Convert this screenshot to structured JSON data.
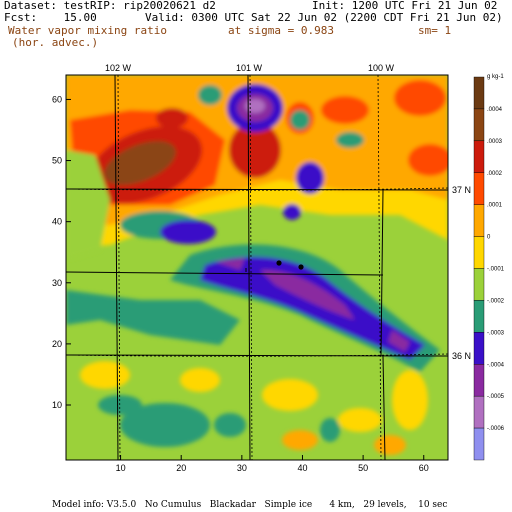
{
  "header": {
    "dataset": "Dataset: test",
    "rip": "RIP: rip20020621 d2",
    "init": "Init: 1200 UTC Fri 21 Jun 02",
    "fcst": "Fcst:    15.00",
    "valid": "Valid: 0300 UTC Sat 22 Jun 02 (2200 CDT Fri 21 Jun 02)",
    "field_line1": "Water vapor mixing ratio",
    "field_line2": "(hor. advec.)",
    "sigma": "at sigma = 0.983",
    "sm": "sm= 1"
  },
  "map": {
    "lon_labels": [
      "102 W",
      "101 W",
      "100 W"
    ],
    "lat_labels": [
      "37 N",
      "36 N"
    ],
    "x_ticks": [
      "10",
      "20",
      "30",
      "40",
      "50",
      "60"
    ],
    "y_ticks": [
      "10",
      "20",
      "30",
      "40",
      "50",
      "60"
    ],
    "x_range": [
      1,
      64
    ],
    "y_range": [
      1,
      64
    ]
  },
  "colorbar": {
    "unit": "g kg-1",
    "labels": [
      ".0004",
      ".0003",
      ".0002",
      ".0001",
      "0",
      "-.0001",
      "-.0002",
      "-.0003",
      "-.0004",
      "-.0005",
      "-.0006"
    ],
    "colors": [
      "#6b3a12",
      "#8b4513",
      "#cc1b0c",
      "#ff4a00",
      "#ffa800",
      "#ffd700",
      "#9bd13a",
      "#2a9c76",
      "#3a10c8",
      "#8a2aa0",
      "#b070c0",
      "#8f8fef"
    ]
  },
  "footer": "Model info: V3.5.0   No Cumulus   Blackadar   Simple ice      4 km,   29 levels,    10 sec"
}
